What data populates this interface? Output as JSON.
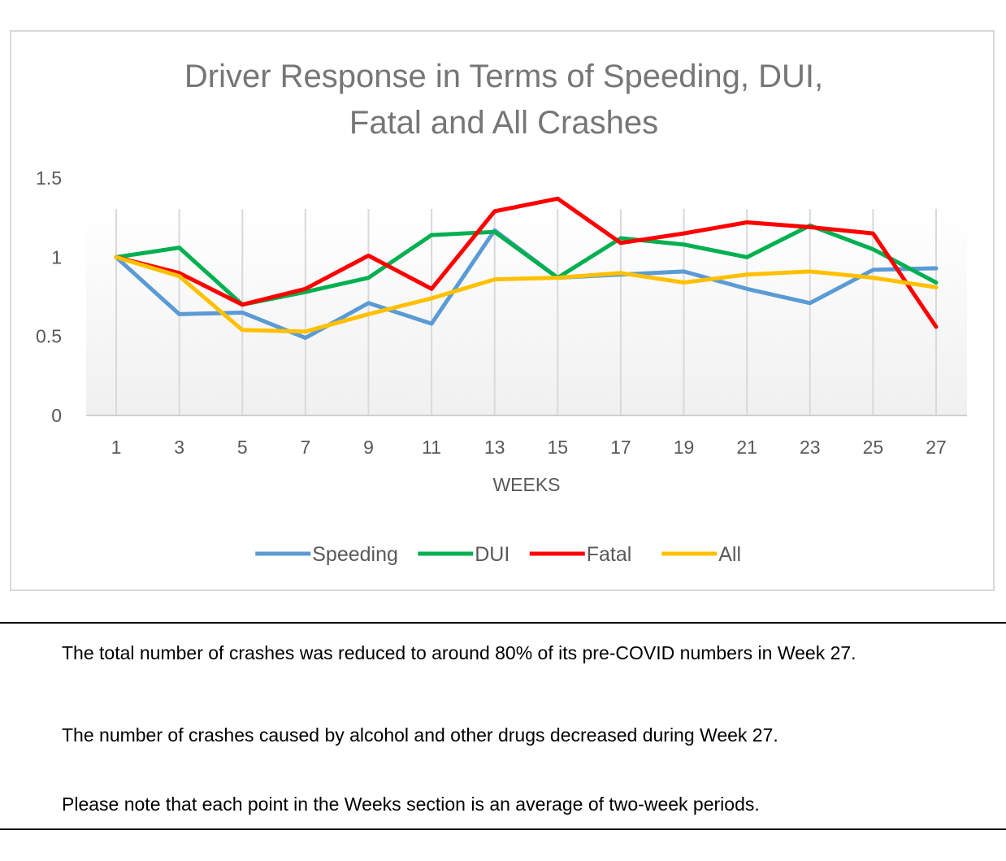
{
  "chart_data": {
    "type": "line",
    "title": "Driver Response in Terms of Speeding, DUI,",
    "title_line2": "Fatal and All Crashes",
    "xlabel": "WEEKS",
    "ylabel": "",
    "categories": [
      "1",
      "3",
      "5",
      "7",
      "9",
      "11",
      "13",
      "15",
      "17",
      "19",
      "21",
      "23",
      "25",
      "27"
    ],
    "ylim": [
      0,
      1.5
    ],
    "yticks": [
      "0",
      "0.5",
      "1",
      "1.5"
    ],
    "grid": "vertical",
    "legend": "bottom",
    "series": [
      {
        "name": "Speeding",
        "color": "#5b9bd5",
        "values": [
          1.0,
          0.64,
          0.65,
          0.49,
          0.71,
          0.58,
          1.17,
          0.87,
          0.89,
          0.91,
          0.8,
          0.71,
          0.92,
          0.93
        ]
      },
      {
        "name": "DUI",
        "color": "#00b050",
        "values": [
          1.0,
          1.06,
          0.7,
          0.78,
          0.87,
          1.14,
          1.16,
          0.87,
          1.12,
          1.08,
          1.0,
          1.2,
          1.05,
          0.84
        ]
      },
      {
        "name": "Fatal",
        "color": "#ff0000",
        "values": [
          1.0,
          0.9,
          0.7,
          0.8,
          1.01,
          0.8,
          1.29,
          1.37,
          1.09,
          1.15,
          1.22,
          1.19,
          1.15,
          0.56
        ]
      },
      {
        "name": "All",
        "color": "#ffc000",
        "values": [
          1.0,
          0.88,
          0.54,
          0.53,
          0.64,
          0.74,
          0.86,
          0.87,
          0.9,
          0.84,
          0.89,
          0.91,
          0.87,
          0.81
        ]
      }
    ]
  },
  "notes": {
    "line1": "The total number of crashes was reduced to around 80% of its pre-COVID numbers in Week 27.",
    "line2": "The number of crashes caused by alcohol and other drugs decreased during Week 27.",
    "line3": "Please note that each point in the Weeks section is an average of two-week periods."
  }
}
